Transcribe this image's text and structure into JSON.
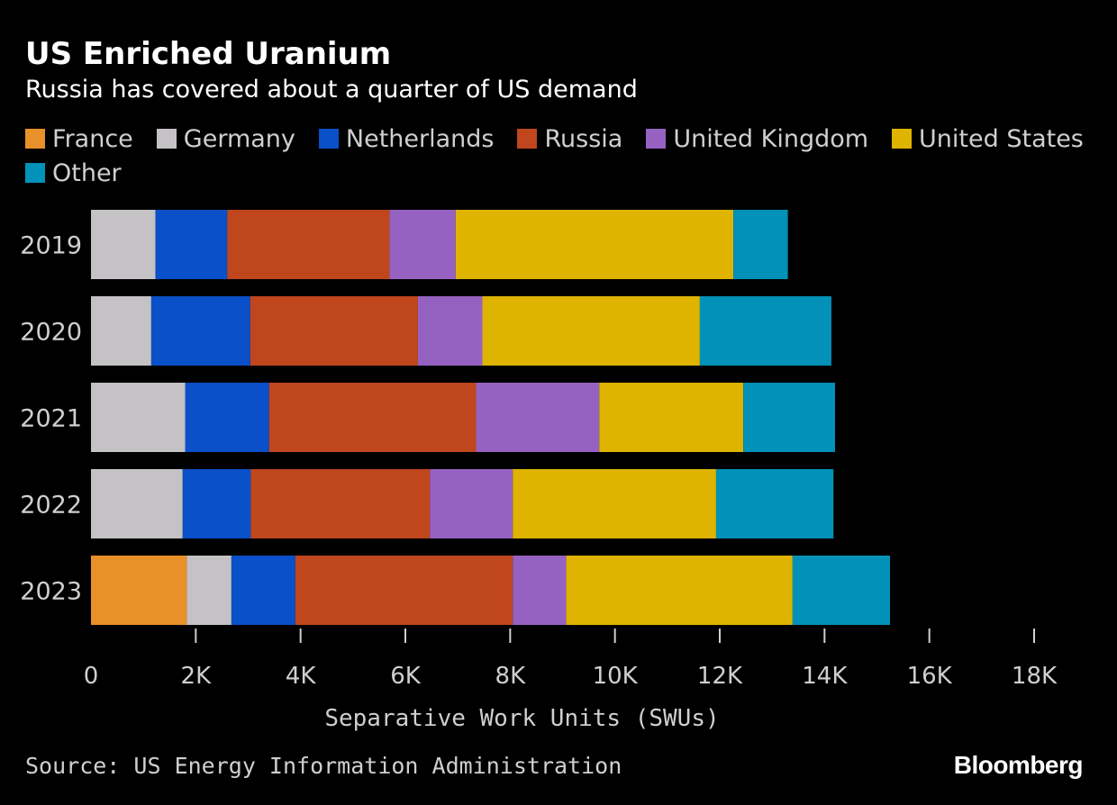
{
  "header": {
    "title": "US Enriched Uranium",
    "subtitle": "Russia has covered about a quarter of US demand"
  },
  "footer": {
    "source": "Source: US Energy Information Administration",
    "brand": "Bloomberg"
  },
  "chart_data": {
    "type": "bar",
    "orientation": "horizontal",
    "stacked": true,
    "title": "US Enriched Uranium",
    "subtitle": "Russia has covered about a quarter of US demand",
    "xlabel": "Separative Work Units (SWUs)",
    "ylabel": "",
    "xlim": [
      0,
      18000
    ],
    "xticks": [
      0,
      2000,
      4000,
      6000,
      8000,
      10000,
      12000,
      14000,
      16000,
      18000
    ],
    "xtick_labels": [
      "0",
      "2K",
      "4K",
      "6K",
      "8K",
      "10K",
      "12K",
      "14K",
      "16K",
      "18K"
    ],
    "grid": false,
    "legend_position": "top",
    "categories": [
      "2019",
      "2020",
      "2021",
      "2022",
      "2023"
    ],
    "series": [
      {
        "name": "France",
        "color": "#e8902a",
        "values": [
          0,
          0,
          0,
          0,
          1830
        ]
      },
      {
        "name": "Germany",
        "color": "#c4c2c4",
        "values": [
          1230,
          1150,
          1800,
          1750,
          850
        ]
      },
      {
        "name": "Netherlands",
        "color": "#0a50c8",
        "values": [
          1370,
          1890,
          1600,
          1300,
          1220
        ]
      },
      {
        "name": "Russia",
        "color": "#c0461e",
        "values": [
          3100,
          3200,
          3950,
          3420,
          4150
        ]
      },
      {
        "name": "United Kingdom",
        "color": "#9562c2",
        "values": [
          1260,
          1230,
          2350,
          1580,
          1020
        ]
      },
      {
        "name": "United States",
        "color": "#deb400",
        "values": [
          5300,
          4150,
          2750,
          3880,
          4320
        ]
      },
      {
        "name": "Other",
        "color": "#0291b8",
        "values": [
          1040,
          2510,
          1750,
          2240,
          1860
        ]
      }
    ]
  }
}
